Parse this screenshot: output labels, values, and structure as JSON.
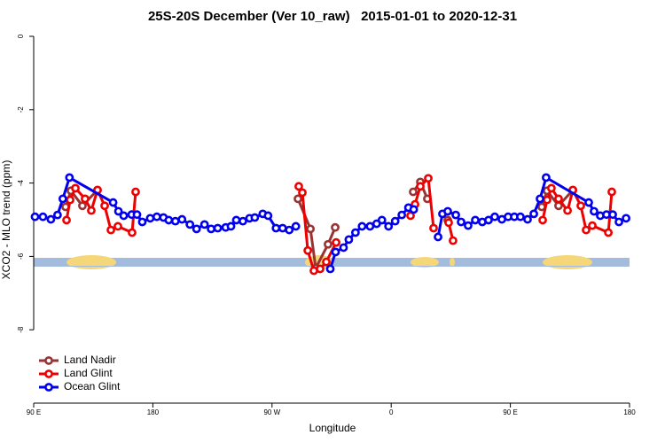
{
  "chart_data": {
    "type": "line",
    "title": "25S-20S December (Ver 10_raw)   2015-01-01 to 2020-12-31",
    "x_label": "Longitude",
    "y_label": "XCO2 - MLO trend (ppm)",
    "xlim": [
      90,
      540
    ],
    "xticks": [
      {
        "value": 90,
        "label": "90 E"
      },
      180,
      {
        "value": 270,
        "label": "90 W"
      },
      {
        "value": 360,
        "label": "0"
      },
      {
        "value": 450,
        "label": "90 E"
      },
      {
        "value": 540,
        "label": "180"
      }
    ],
    "ylim": [
      -10,
      0
    ],
    "yticks": [
      0,
      -2,
      -4,
      -6,
      -8
    ],
    "legend": "bottom-left",
    "series": [
      {
        "name": "Land Nadir",
        "color": "#993333",
        "x": [
          114.1,
          118.1,
          126.8,
          138.2,
          null,
          289.6,
          299,
          303,
          312.3,
          317.7,
          null,
          376.6,
          382,
          387.3,
          null,
          402.7,
          null,
          473.7,
          477.7,
          486.4,
          497.2
        ],
        "values": [
          -4.65,
          -4.21,
          -4.62,
          -4.19,
          null,
          -4.43,
          -5.25,
          -6.32,
          -5.67,
          -5.21,
          null,
          -4.24,
          -3.97,
          -4.43,
          null,
          -5.01,
          null,
          -4.65,
          -4.21,
          -4.62,
          -4.19
        ]
      },
      {
        "name": "Land Glint",
        "color": "#ee0000",
        "x": [
          114.8,
          117.5,
          121.5,
          128.8,
          133.5,
          138.2,
          143.6,
          148.3,
          153.6,
          164.3,
          167,
          null,
          290.2,
          292.9,
          297,
          301.6,
          306.3,
          311,
          318.4,
          null,
          374.6,
          378,
          382,
          388,
          392,
          null,
          403.4,
          406.7,
          null,
          474.4,
          477.7,
          481,
          486.4,
          493.2,
          497.2,
          503.2,
          507.2,
          511.9,
          524,
          526.6
        ],
        "values": [
          -5.01,
          -4.46,
          -4.14,
          -4.43,
          -4.75,
          -4.19,
          -4.62,
          -5.28,
          -5.18,
          -5.35,
          -4.24,
          null,
          -4.09,
          -4.26,
          -5.84,
          -6.39,
          -6.34,
          -6.15,
          -5.62,
          null,
          -4.89,
          -4.58,
          -4.09,
          -3.87,
          -5.23,
          null,
          -5.08,
          -5.57,
          null,
          -5.01,
          -4.46,
          -4.14,
          -4.43,
          -4.75,
          -4.19,
          -4.62,
          -5.28,
          -5.16,
          -5.35,
          -4.24
        ]
      },
      {
        "name": "Ocean Glint",
        "color": "#0000ee",
        "x": [
          91,
          97,
          103,
          108,
          112,
          117,
          150,
          154,
          158,
          164,
          168,
          172,
          178,
          183,
          188,
          192,
          197,
          202,
          208,
          213,
          219,
          224,
          229,
          235,
          239,
          243,
          248,
          253,
          257,
          263,
          267,
          273,
          278,
          283,
          288,
          null,
          314,
          318,
          324,
          328,
          333,
          338,
          344,
          349,
          353,
          358,
          363,
          368,
          373,
          377,
          null,
          395.4,
          398.7,
          402.7,
          408.8,
          412.8,
          418.1,
          423.5,
          428.8,
          433.5,
          438.2,
          443.6,
          448.3,
          453,
          457.6,
          463,
          467.7,
          472.4,
          477,
          509.2,
          513.2,
          517.9,
          522.6,
          527.3,
          532,
          537.4
        ],
        "values": [
          -4.92,
          -4.92,
          -4.99,
          -4.87,
          -4.43,
          -3.85,
          -4.53,
          -4.77,
          -4.89,
          -4.86,
          -4.86,
          -5.06,
          -4.96,
          -4.92,
          -4.94,
          -5.01,
          -5.04,
          -4.99,
          -5.13,
          -5.25,
          -5.13,
          -5.25,
          -5.23,
          -5.21,
          -5.18,
          -5.01,
          -5.04,
          -4.96,
          -4.94,
          -4.84,
          -4.89,
          -5.23,
          -5.23,
          -5.28,
          -5.18,
          null,
          -6.34,
          -5.88,
          -5.76,
          -5.54,
          -5.35,
          -5.18,
          -5.18,
          -5.11,
          -5.01,
          -5.18,
          -5.04,
          -4.87,
          -4.67,
          -4.72,
          null,
          -5.47,
          -4.84,
          -4.77,
          -4.87,
          -5.06,
          -5.16,
          -5.01,
          -5.06,
          -5.01,
          -4.92,
          -4.99,
          -4.92,
          -4.92,
          -4.92,
          -4.99,
          -4.84,
          -4.43,
          -3.85,
          -4.53,
          -4.77,
          -4.89,
          -4.86,
          -4.86,
          -5.06,
          -4.96
        ]
      }
    ]
  }
}
